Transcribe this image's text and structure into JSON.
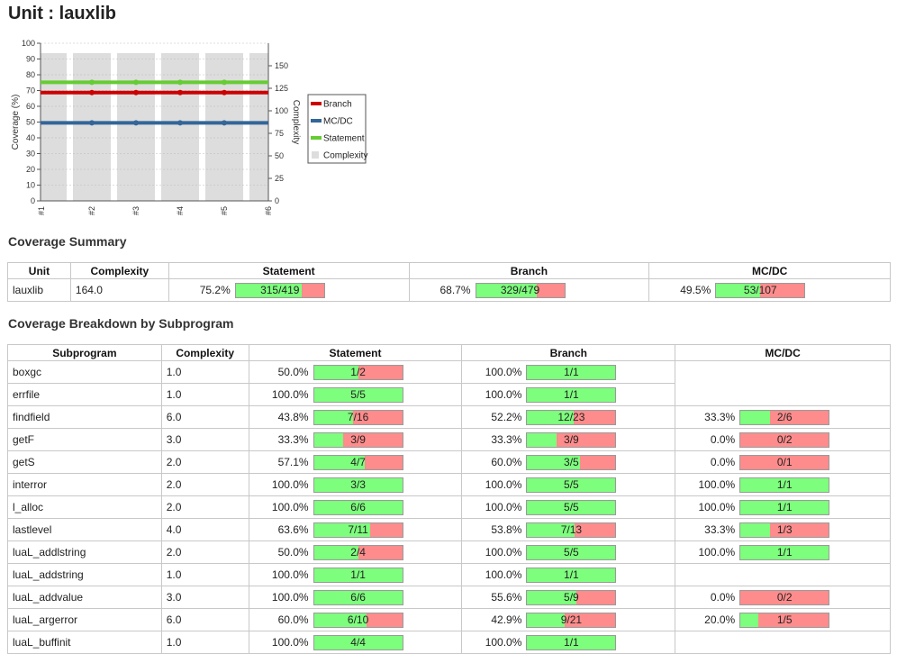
{
  "page": {
    "title": "Unit : lauxlib"
  },
  "chart_data": {
    "type": "line",
    "categories": [
      "#1",
      "#2",
      "#3",
      "#4",
      "#5",
      "#6"
    ],
    "ylabel": "Coverage (%)",
    "y2label": "Complexity",
    "ylim": [
      0,
      100
    ],
    "y2lim": [
      0,
      175
    ],
    "yticks": [
      "0",
      "10",
      "20",
      "30",
      "40",
      "50",
      "60",
      "70",
      "80",
      "90",
      "100"
    ],
    "y2ticks": [
      "0",
      "25",
      "50",
      "75",
      "100",
      "125",
      "150"
    ],
    "grid": true,
    "legend_position": "right",
    "series": [
      {
        "name": "Branch",
        "color": "#cc0000",
        "values": [
          68.7,
          68.7,
          68.7,
          68.7,
          68.7,
          68.7
        ]
      },
      {
        "name": "MC/DC",
        "color": "#336699",
        "values": [
          49.5,
          49.5,
          49.5,
          49.5,
          49.5,
          49.5
        ]
      },
      {
        "name": "Statement",
        "color": "#66cc33",
        "values": [
          75.2,
          75.2,
          75.2,
          75.2,
          75.2,
          75.2
        ]
      },
      {
        "name": "Complexity",
        "color": "#dddddd",
        "kind": "bar",
        "axis": "y2",
        "values": [
          164,
          164,
          164,
          164,
          164,
          164
        ]
      }
    ]
  },
  "summary": {
    "title": "Coverage Summary",
    "headers": [
      "Unit",
      "Complexity",
      "Statement",
      "Branch",
      "MC/DC"
    ],
    "row": {
      "unit": "lauxlib",
      "complexity": "164.0",
      "statement": {
        "pct": "75.2%",
        "label": "315/419",
        "frac": 0.752
      },
      "branch": {
        "pct": "68.7%",
        "label": "329/479",
        "frac": 0.687
      },
      "mcdc": {
        "pct": "49.5%",
        "label": "53/107",
        "frac": 0.495
      }
    }
  },
  "breakdown": {
    "title": "Coverage Breakdown by Subprogram",
    "headers": [
      "Subprogram",
      "Complexity",
      "Statement",
      "Branch",
      "MC/DC"
    ],
    "rows": [
      {
        "name": "boxgc",
        "complexity": "1.0",
        "statement": {
          "pct": "50.0%",
          "label": "1/2",
          "frac": 0.5
        },
        "branch": {
          "pct": "100.0%",
          "label": "1/1",
          "frac": 1.0
        },
        "mcdc": null
      },
      {
        "name": "errfile",
        "complexity": "1.0",
        "statement": {
          "pct": "100.0%",
          "label": "5/5",
          "frac": 1.0
        },
        "branch": {
          "pct": "100.0%",
          "label": "1/1",
          "frac": 1.0
        },
        "mcdc": null
      },
      {
        "name": "findfield",
        "complexity": "6.0",
        "statement": {
          "pct": "43.8%",
          "label": "7/16",
          "frac": 0.438
        },
        "branch": {
          "pct": "52.2%",
          "label": "12/23",
          "frac": 0.522
        },
        "mcdc": {
          "pct": "33.3%",
          "label": "2/6",
          "frac": 0.333
        }
      },
      {
        "name": "getF",
        "complexity": "3.0",
        "statement": {
          "pct": "33.3%",
          "label": "3/9",
          "frac": 0.333
        },
        "branch": {
          "pct": "33.3%",
          "label": "3/9",
          "frac": 0.333
        },
        "mcdc": {
          "pct": "0.0%",
          "label": "0/2",
          "frac": 0.0
        }
      },
      {
        "name": "getS",
        "complexity": "2.0",
        "statement": {
          "pct": "57.1%",
          "label": "4/7",
          "frac": 0.571
        },
        "branch": {
          "pct": "60.0%",
          "label": "3/5",
          "frac": 0.6
        },
        "mcdc": {
          "pct": "0.0%",
          "label": "0/1",
          "frac": 0.0
        }
      },
      {
        "name": "interror",
        "complexity": "2.0",
        "statement": {
          "pct": "100.0%",
          "label": "3/3",
          "frac": 1.0
        },
        "branch": {
          "pct": "100.0%",
          "label": "5/5",
          "frac": 1.0
        },
        "mcdc": {
          "pct": "100.0%",
          "label": "1/1",
          "frac": 1.0
        }
      },
      {
        "name": "l_alloc",
        "complexity": "2.0",
        "statement": {
          "pct": "100.0%",
          "label": "6/6",
          "frac": 1.0
        },
        "branch": {
          "pct": "100.0%",
          "label": "5/5",
          "frac": 1.0
        },
        "mcdc": {
          "pct": "100.0%",
          "label": "1/1",
          "frac": 1.0
        }
      },
      {
        "name": "lastlevel",
        "complexity": "4.0",
        "statement": {
          "pct": "63.6%",
          "label": "7/11",
          "frac": 0.636
        },
        "branch": {
          "pct": "53.8%",
          "label": "7/13",
          "frac": 0.538
        },
        "mcdc": {
          "pct": "33.3%",
          "label": "1/3",
          "frac": 0.333
        }
      },
      {
        "name": "luaL_addlstring",
        "complexity": "2.0",
        "statement": {
          "pct": "50.0%",
          "label": "2/4",
          "frac": 0.5
        },
        "branch": {
          "pct": "100.0%",
          "label": "5/5",
          "frac": 1.0
        },
        "mcdc": {
          "pct": "100.0%",
          "label": "1/1",
          "frac": 1.0
        }
      },
      {
        "name": "luaL_addstring",
        "complexity": "1.0",
        "statement": {
          "pct": "100.0%",
          "label": "1/1",
          "frac": 1.0
        },
        "branch": {
          "pct": "100.0%",
          "label": "1/1",
          "frac": 1.0
        },
        "mcdc": null
      },
      {
        "name": "luaL_addvalue",
        "complexity": "3.0",
        "statement": {
          "pct": "100.0%",
          "label": "6/6",
          "frac": 1.0
        },
        "branch": {
          "pct": "55.6%",
          "label": "5/9",
          "frac": 0.556
        },
        "mcdc": {
          "pct": "0.0%",
          "label": "0/2",
          "frac": 0.0
        }
      },
      {
        "name": "luaL_argerror",
        "complexity": "6.0",
        "statement": {
          "pct": "60.0%",
          "label": "6/10",
          "frac": 0.6
        },
        "branch": {
          "pct": "42.9%",
          "label": "9/21",
          "frac": 0.429
        },
        "mcdc": {
          "pct": "20.0%",
          "label": "1/5",
          "frac": 0.2
        }
      },
      {
        "name": "luaL_buffinit",
        "complexity": "1.0",
        "statement": {
          "pct": "100.0%",
          "label": "4/4",
          "frac": 1.0
        },
        "branch": {
          "pct": "100.0%",
          "label": "1/1",
          "frac": 1.0
        },
        "mcdc": null
      }
    ]
  }
}
